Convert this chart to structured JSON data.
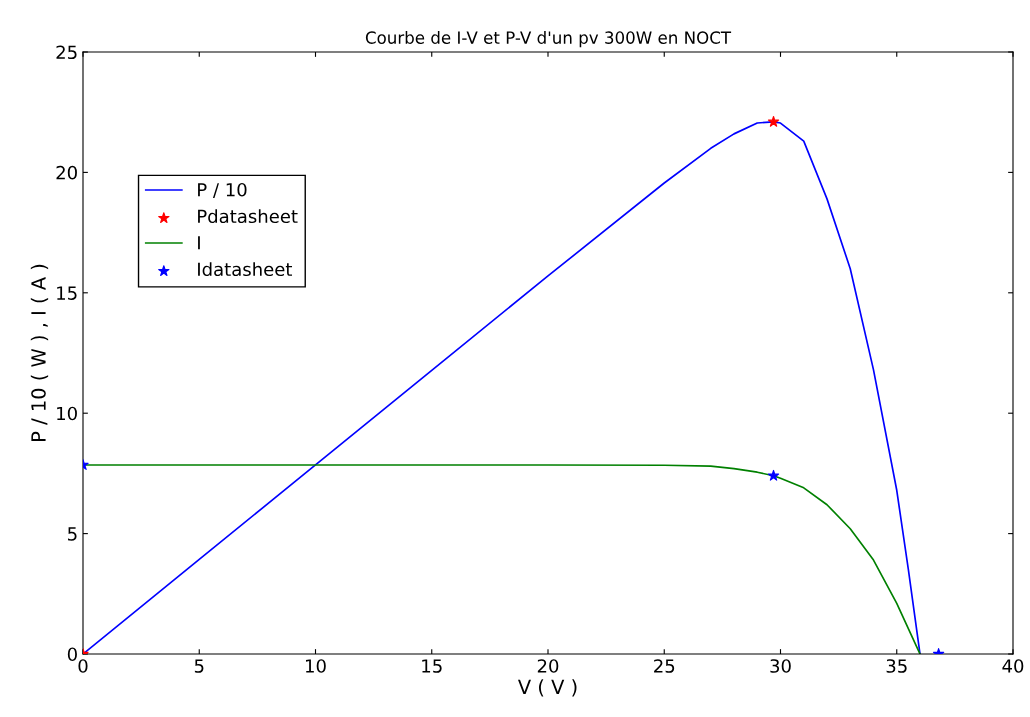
{
  "chart_data": {
    "type": "line",
    "title": "Courbe de I-V et P-V d'un pv 300W en NOCT",
    "xlabel": "V ( V )",
    "ylabel": "P / 10 ( W ) , I ( A )",
    "xlim": [
      0,
      40
    ],
    "xticks": [
      0,
      5,
      10,
      15,
      20,
      25,
      30,
      35,
      40
    ],
    "ylim": [
      0,
      25
    ],
    "yticks": [
      0,
      5,
      10,
      15,
      20,
      25
    ],
    "grid": false,
    "legend": "upper left",
    "series": [
      {
        "name": "P / 10",
        "color": "#0000ff",
        "marker": "none",
        "x": [
          0,
          5,
          10,
          15,
          20,
          25,
          27,
          28,
          29,
          29.7,
          30,
          31,
          32,
          33,
          34,
          35,
          35.5,
          36
        ],
        "values": [
          0,
          3.93,
          7.85,
          11.78,
          15.7,
          19.56,
          21.0,
          21.6,
          22.05,
          22.1,
          22.05,
          21.3,
          18.9,
          16.0,
          11.8,
          6.8,
          3.5,
          0
        ]
      },
      {
        "name": "Pdatasheet",
        "type": "scatter",
        "color": "#ff0000",
        "marker": "star",
        "x": [
          0,
          29.7
        ],
        "values": [
          0,
          22.1
        ]
      },
      {
        "name": "I",
        "color": "#008000",
        "marker": "none",
        "x": [
          0,
          5,
          10,
          15,
          20,
          25,
          27,
          28,
          29,
          29.7,
          30,
          31,
          32,
          33,
          34,
          35,
          36
        ],
        "values": [
          7.85,
          7.85,
          7.85,
          7.85,
          7.85,
          7.84,
          7.8,
          7.7,
          7.55,
          7.4,
          7.3,
          6.9,
          6.2,
          5.2,
          3.9,
          2.1,
          0
        ]
      },
      {
        "name": "Idatasheet",
        "type": "scatter",
        "color": "#0000ff",
        "marker": "star",
        "x": [
          0,
          29.7,
          36.8
        ],
        "values": [
          7.85,
          7.4,
          0
        ]
      }
    ]
  }
}
